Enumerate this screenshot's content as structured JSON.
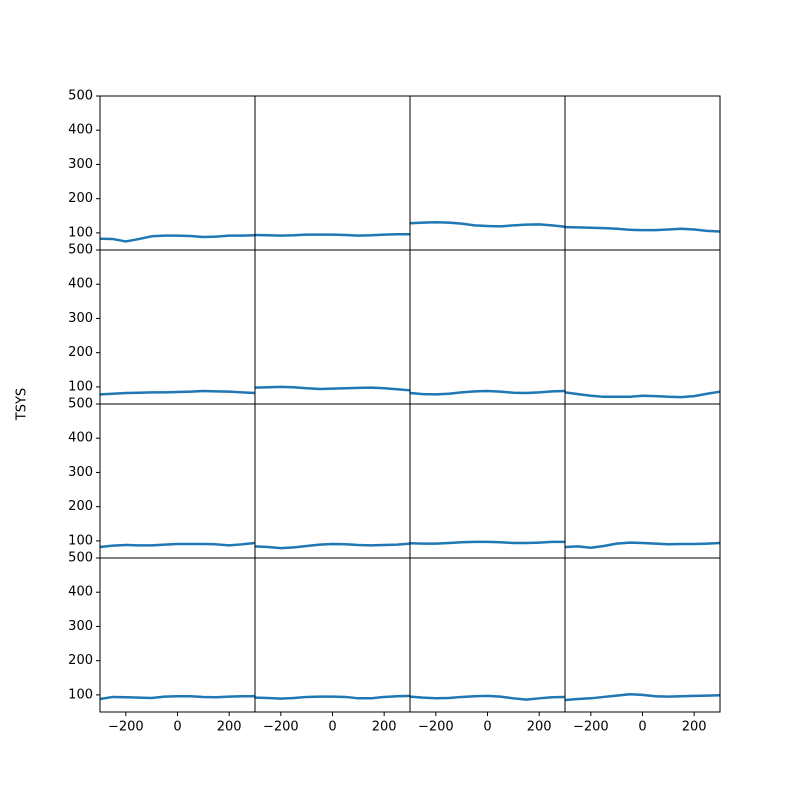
{
  "ylabel": "TSYS",
  "chart_data": [
    {
      "type": "line",
      "x": [
        -300,
        -250,
        -200,
        -150,
        -100,
        -50,
        0,
        50,
        100,
        150,
        200,
        250,
        300
      ],
      "values": [
        83,
        82,
        75,
        82,
        90,
        92,
        92,
        91,
        88,
        89,
        92,
        92,
        93
      ],
      "color": "#1f77b4",
      "xlim": [
        -300,
        300
      ],
      "ylim": [
        50,
        500
      ],
      "yticks": [
        100,
        200,
        300,
        400,
        500
      ]
    },
    {
      "type": "line",
      "x": [
        -300,
        -250,
        -200,
        -150,
        -100,
        -50,
        0,
        50,
        100,
        150,
        200,
        250,
        300
      ],
      "values": [
        94,
        93,
        92,
        93,
        95,
        95,
        95,
        94,
        92,
        93,
        95,
        96,
        96
      ],
      "color": "#1f77b4",
      "xlim": [
        -300,
        300
      ],
      "ylim": [
        50,
        500
      ]
    },
    {
      "type": "line",
      "x": [
        -300,
        -250,
        -200,
        -150,
        -100,
        -50,
        0,
        50,
        100,
        150,
        200,
        250,
        300
      ],
      "values": [
        128,
        130,
        131,
        130,
        127,
        122,
        120,
        119,
        122,
        124,
        125,
        122,
        118
      ],
      "color": "#1f77b4",
      "xlim": [
        -300,
        300
      ],
      "ylim": [
        50,
        500
      ]
    },
    {
      "type": "line",
      "x": [
        -300,
        -250,
        -200,
        -150,
        -100,
        -50,
        0,
        50,
        100,
        150,
        200,
        250,
        300
      ],
      "values": [
        117,
        116,
        115,
        114,
        112,
        109,
        108,
        108,
        110,
        112,
        110,
        106,
        104
      ],
      "color": "#1f77b4",
      "xlim": [
        -300,
        300
      ],
      "ylim": [
        50,
        500
      ]
    },
    {
      "type": "line",
      "x": [
        -300,
        -250,
        -200,
        -150,
        -100,
        -50,
        0,
        50,
        100,
        150,
        200,
        250,
        300
      ],
      "values": [
        78,
        80,
        82,
        83,
        84,
        84,
        85,
        86,
        88,
        87,
        86,
        84,
        82
      ],
      "color": "#1f77b4",
      "xlim": [
        -300,
        300
      ],
      "ylim": [
        50,
        500
      ],
      "yticks": [
        100,
        200,
        300,
        400,
        500
      ]
    },
    {
      "type": "line",
      "x": [
        -300,
        -250,
        -200,
        -150,
        -100,
        -50,
        0,
        50,
        100,
        150,
        200,
        250,
        300
      ],
      "values": [
        98,
        99,
        100,
        99,
        96,
        94,
        95,
        96,
        97,
        98,
        96,
        93,
        90
      ],
      "color": "#1f77b4",
      "xlim": [
        -300,
        300
      ],
      "ylim": [
        50,
        500
      ]
    },
    {
      "type": "line",
      "x": [
        -300,
        -250,
        -200,
        -150,
        -100,
        -50,
        0,
        50,
        100,
        150,
        200,
        250,
        300
      ],
      "values": [
        82,
        79,
        78,
        80,
        84,
        87,
        88,
        86,
        83,
        82,
        84,
        87,
        88
      ],
      "color": "#1f77b4",
      "xlim": [
        -300,
        300
      ],
      "ylim": [
        50,
        500
      ]
    },
    {
      "type": "line",
      "x": [
        -300,
        -250,
        -200,
        -150,
        -100,
        -50,
        0,
        50,
        100,
        150,
        200,
        250,
        300
      ],
      "values": [
        84,
        79,
        74,
        71,
        71,
        71,
        74,
        73,
        71,
        70,
        73,
        80,
        86
      ],
      "color": "#1f77b4",
      "xlim": [
        -300,
        300
      ],
      "ylim": [
        50,
        500
      ]
    },
    {
      "type": "line",
      "x": [
        -300,
        -250,
        -200,
        -150,
        -100,
        -50,
        0,
        50,
        100,
        150,
        200,
        250,
        300
      ],
      "values": [
        82,
        86,
        88,
        87,
        87,
        89,
        91,
        91,
        91,
        90,
        87,
        90,
        94
      ],
      "color": "#1f77b4",
      "xlim": [
        -300,
        300
      ],
      "ylim": [
        50,
        500
      ],
      "yticks": [
        100,
        200,
        300,
        400,
        500
      ]
    },
    {
      "type": "line",
      "x": [
        -300,
        -250,
        -200,
        -150,
        -100,
        -50,
        0,
        50,
        100,
        150,
        200,
        250,
        300
      ],
      "values": [
        84,
        82,
        79,
        81,
        85,
        89,
        91,
        90,
        88,
        87,
        88,
        89,
        92
      ],
      "color": "#1f77b4",
      "xlim": [
        -300,
        300
      ],
      "ylim": [
        50,
        500
      ]
    },
    {
      "type": "line",
      "x": [
        -300,
        -250,
        -200,
        -150,
        -100,
        -50,
        0,
        50,
        100,
        150,
        200,
        250,
        300
      ],
      "values": [
        93,
        92,
        92,
        94,
        96,
        97,
        97,
        96,
        94,
        94,
        95,
        97,
        97
      ],
      "color": "#1f77b4",
      "xlim": [
        -300,
        300
      ],
      "ylim": [
        50,
        500
      ]
    },
    {
      "type": "line",
      "x": [
        -300,
        -250,
        -200,
        -150,
        -100,
        -50,
        0,
        50,
        100,
        150,
        200,
        250,
        300
      ],
      "values": [
        82,
        84,
        80,
        85,
        92,
        95,
        94,
        92,
        90,
        91,
        91,
        92,
        94
      ],
      "color": "#1f77b4",
      "xlim": [
        -300,
        300
      ],
      "ylim": [
        50,
        500
      ]
    },
    {
      "type": "line",
      "x": [
        -300,
        -250,
        -200,
        -150,
        -100,
        -50,
        0,
        50,
        100,
        150,
        200,
        250,
        300
      ],
      "values": [
        88,
        94,
        93,
        92,
        91,
        95,
        96,
        96,
        94,
        93,
        95,
        96,
        96
      ],
      "color": "#1f77b4",
      "xlim": [
        -300,
        300
      ],
      "ylim": [
        50,
        500
      ],
      "yticks": [
        100,
        200,
        300,
        400,
        500
      ],
      "xticks": [
        {
          "value": -200,
          "label": "−200"
        },
        0,
        200
      ]
    },
    {
      "type": "line",
      "x": [
        -300,
        -250,
        -200,
        -150,
        -100,
        -50,
        0,
        50,
        100,
        150,
        200,
        250,
        300
      ],
      "values": [
        92,
        91,
        89,
        91,
        94,
        95,
        95,
        94,
        90,
        90,
        94,
        96,
        97
      ],
      "color": "#1f77b4",
      "xlim": [
        -300,
        300
      ],
      "ylim": [
        50,
        500
      ],
      "xticks": [
        {
          "value": -200,
          "label": "−200"
        },
        0,
        200
      ]
    },
    {
      "type": "line",
      "x": [
        -300,
        -250,
        -200,
        -150,
        -100,
        -50,
        0,
        50,
        100,
        150,
        200,
        250,
        300
      ],
      "values": [
        95,
        92,
        90,
        91,
        94,
        96,
        97,
        95,
        90,
        86,
        90,
        93,
        94
      ],
      "color": "#1f77b4",
      "xlim": [
        -300,
        300
      ],
      "ylim": [
        50,
        500
      ],
      "xticks": [
        {
          "value": -200,
          "label": "−200"
        },
        0,
        200
      ]
    },
    {
      "type": "line",
      "x": [
        -300,
        -250,
        -200,
        -150,
        -100,
        -50,
        0,
        50,
        100,
        150,
        200,
        250,
        300
      ],
      "values": [
        85,
        88,
        90,
        94,
        98,
        102,
        100,
        96,
        95,
        96,
        97,
        98,
        99
      ],
      "color": "#1f77b4",
      "xlim": [
        -300,
        300
      ],
      "ylim": [
        50,
        500
      ],
      "xticks": [
        {
          "value": -200,
          "label": "−200"
        },
        0,
        200
      ]
    }
  ]
}
